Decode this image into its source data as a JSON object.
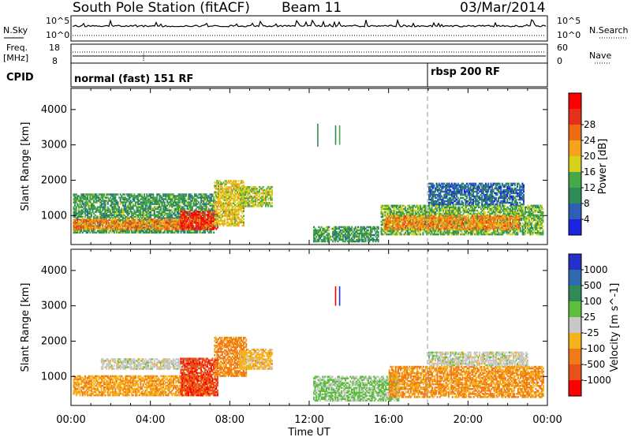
{
  "header": {
    "station": "South Pole Station (fitACF)",
    "beam": "Beam 11",
    "date": "03/Mar/2014"
  },
  "strip_panels": {
    "nsky_label": "N.Sky",
    "nsearch_label": "N.Search",
    "freq_label": "Freq.",
    "freq_unit": "[MHz]",
    "nave_label": "Nave",
    "cpid_label": "CPID",
    "nsky_ticks": [
      "10^5",
      "10^0"
    ],
    "nsearch_ticks": [
      "10^5",
      "10^0"
    ],
    "freq_ticks": [
      "18",
      "8"
    ],
    "nave_ticks": [
      "60",
      "0"
    ]
  },
  "cpid": {
    "modes": [
      {
        "label": "normal (fast) 151 RF",
        "start": "00:00"
      },
      {
        "label": "rbsp 200 RF",
        "start": "18:00"
      }
    ]
  },
  "axes": {
    "ylabel": "Slant Range [km]",
    "xlabel": "Time UT",
    "y_ticks": [
      "1000",
      "2000",
      "3000",
      "4000"
    ],
    "x_ticks": [
      "00:00",
      "04:00",
      "08:00",
      "12:00",
      "16:00",
      "20:00",
      "00:00"
    ]
  },
  "colorbars": {
    "power": {
      "label": "Power [dB]",
      "ticks": [
        "4",
        "8",
        "12",
        "16",
        "20",
        "24",
        "28"
      ],
      "colors": [
        "#1a24e0",
        "#2e5fb5",
        "#2f8a55",
        "#47a848",
        "#d6d21c",
        "#f6a21a",
        "#ee6a13",
        "#e5311a",
        "#ff0000"
      ]
    },
    "velocity": {
      "label": "Velocity [m s^-1]",
      "ticks": [
        "1000",
        "500",
        "100",
        "25",
        "-25",
        "-100",
        "-500",
        "-1000"
      ],
      "colors": [
        "#2430c8",
        "#2e6ab0",
        "#2f8a55",
        "#5cbe3c",
        "#c8c8c8",
        "#f5b21b",
        "#f07a17",
        "#e8511a",
        "#ff0000"
      ]
    }
  },
  "chart_data": [
    {
      "type": "heatmap",
      "title": "Power",
      "ylabel": "Slant Range [km]",
      "xlabel": "Time UT",
      "xlim": [
        0,
        24
      ],
      "ylim": [
        180,
        4600
      ],
      "colorbar": "Power [dB]",
      "clim": [
        0,
        30
      ],
      "blobs": [
        {
          "t0": 0.1,
          "t1": 7.2,
          "r0": 500,
          "r1": 1600,
          "v": 10
        },
        {
          "t0": 0.1,
          "t1": 7.0,
          "r0": 600,
          "r1": 900,
          "v": 20
        },
        {
          "t0": 5.5,
          "t1": 7.4,
          "r0": 600,
          "r1": 1100,
          "v": 26
        },
        {
          "t0": 7.2,
          "t1": 8.7,
          "r0": 700,
          "r1": 2000,
          "v": 16
        },
        {
          "t0": 8.5,
          "t1": 10.1,
          "r0": 1250,
          "r1": 1800,
          "v": 14
        },
        {
          "t0": 15.6,
          "t1": 23.8,
          "r0": 450,
          "r1": 1300,
          "v": 12
        },
        {
          "t0": 15.8,
          "t1": 22.6,
          "r0": 600,
          "r1": 1000,
          "v": 20
        },
        {
          "t0": 18.0,
          "t1": 22.8,
          "r0": 1300,
          "r1": 1900,
          "v": 6
        },
        {
          "t0": 12.2,
          "t1": 15.5,
          "r0": 250,
          "r1": 700,
          "v": 10
        }
      ],
      "lines": [
        {
          "t": 12.4,
          "r0": 2950,
          "r1": 3600,
          "v": 8
        },
        {
          "t": 13.3,
          "r0": 3000,
          "r1": 3550,
          "v": 8
        },
        {
          "t": 13.5,
          "r0": 3000,
          "r1": 3550,
          "v": 12
        }
      ]
    },
    {
      "type": "heatmap",
      "title": "Velocity",
      "ylabel": "Slant Range [km]",
      "xlabel": "Time UT",
      "xlim": [
        0,
        24
      ],
      "ylim": [
        180,
        4600
      ],
      "colorbar": "Velocity [m s^-1]",
      "clim": [
        -1000,
        1000
      ],
      "blobs": [
        {
          "t0": 0.1,
          "t1": 7.0,
          "r0": 450,
          "r1": 1000,
          "v": -300
        },
        {
          "t0": 1.5,
          "t1": 6.5,
          "r0": 1200,
          "r1": 1500,
          "v": 0
        },
        {
          "t0": 5.5,
          "t1": 7.4,
          "r0": 450,
          "r1": 1500,
          "v": -700
        },
        {
          "t0": 7.2,
          "t1": 8.8,
          "r0": 1000,
          "r1": 2100,
          "v": -400
        },
        {
          "t0": 8.5,
          "t1": 10.1,
          "r0": 1200,
          "r1": 1750,
          "v": -200
        },
        {
          "t0": 12.2,
          "t1": 16.5,
          "r0": 300,
          "r1": 1000,
          "v": 150
        },
        {
          "t0": 16.0,
          "t1": 23.8,
          "r0": 400,
          "r1": 1300,
          "v": -350
        },
        {
          "t0": 18.0,
          "t1": 23.0,
          "r0": 1300,
          "r1": 1700,
          "v": 0
        }
      ],
      "lines": [
        {
          "t": 13.3,
          "r0": 3000,
          "r1": 3550,
          "v": -1000
        },
        {
          "t": 13.5,
          "r0": 3000,
          "r1": 3550,
          "v": 1000
        }
      ]
    }
  ]
}
